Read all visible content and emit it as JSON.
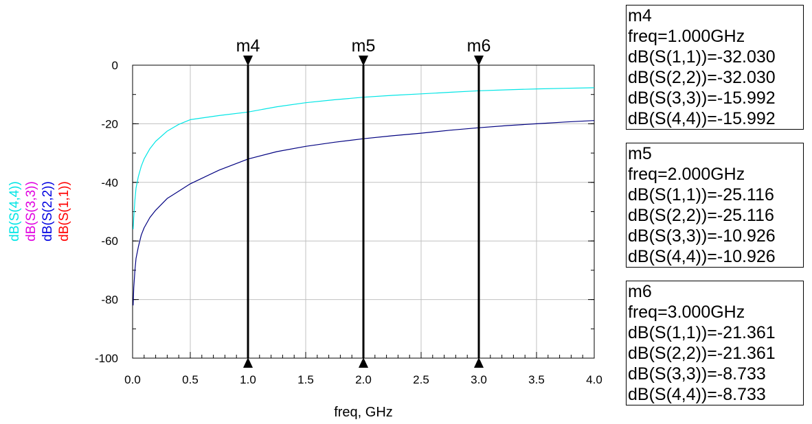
{
  "chart_data": {
    "type": "line",
    "xlabel": "freq, GHz",
    "xlim": [
      0.0,
      4.0
    ],
    "ylim": [
      -100,
      0
    ],
    "x_ticks": [
      "0.0",
      "0.5",
      "1.0",
      "1.5",
      "2.0",
      "2.5",
      "3.0",
      "3.5",
      "4.0"
    ],
    "y_ticks": [
      "0",
      "-20",
      "-40",
      "-60",
      "-80",
      "-100"
    ],
    "grid": true,
    "ylabels": [
      {
        "text": "dB(S(4,4))",
        "color": "#00e5e5"
      },
      {
        "text": "dB(S(3,3))",
        "color": "#e000e0"
      },
      {
        "text": "dB(S(2,2))",
        "color": "#0000e0"
      },
      {
        "text": "dB(S(1,1))",
        "color": "#ff0000"
      }
    ],
    "series": [
      {
        "name": "dB(S(4,4))",
        "color": "#00e5e5",
        "x": [
          0.005,
          0.01,
          0.02,
          0.03,
          0.05,
          0.075,
          0.1,
          0.15,
          0.2,
          0.3,
          0.4,
          0.5,
          0.75,
          1.0,
          1.25,
          1.5,
          1.75,
          2.0,
          2.25,
          2.5,
          2.75,
          3.0,
          3.25,
          3.5,
          3.75,
          4.0
        ],
        "y": [
          -56,
          -52,
          -46,
          -42,
          -38,
          -34.5,
          -32,
          -28.5,
          -26,
          -22.5,
          -20.2,
          -18.6,
          -17.2,
          -15.992,
          -14.2,
          -12.8,
          -11.8,
          -10.926,
          -10.3,
          -9.8,
          -9.25,
          -8.733,
          -8.4,
          -8.1,
          -7.9,
          -7.7
        ]
      },
      {
        "name": "dB(S(2,2))",
        "color": "#000080",
        "x": [
          0.005,
          0.01,
          0.02,
          0.03,
          0.05,
          0.075,
          0.1,
          0.15,
          0.2,
          0.3,
          0.4,
          0.5,
          0.75,
          1.0,
          1.25,
          1.5,
          1.75,
          2.0,
          2.25,
          2.5,
          2.75,
          3.0,
          3.25,
          3.5,
          3.75,
          4.0
        ],
        "y": [
          -82,
          -76,
          -70,
          -66,
          -62,
          -58,
          -55.5,
          -52,
          -49.5,
          -45.5,
          -43,
          -40.5,
          -35.8,
          -32.03,
          -29.5,
          -27.7,
          -26.3,
          -25.116,
          -24.1,
          -23.2,
          -22.2,
          -21.361,
          -20.6,
          -20.0,
          -19.4,
          -18.9
        ]
      }
    ],
    "markers": [
      {
        "name": "m4",
        "x": 1.0
      },
      {
        "name": "m5",
        "x": 2.0
      },
      {
        "name": "m6",
        "x": 3.0
      }
    ]
  },
  "marker_readouts": [
    {
      "name": "m4",
      "freq": "freq=1.000GHz",
      "lines": [
        "dB(S(1,1))=-32.030",
        "dB(S(2,2))=-32.030",
        "dB(S(3,3))=-15.992",
        "dB(S(4,4))=-15.992"
      ]
    },
    {
      "name": "m5",
      "freq": "freq=2.000GHz",
      "lines": [
        "dB(S(1,1))=-25.116",
        "dB(S(2,2))=-25.116",
        "dB(S(3,3))=-10.926",
        "dB(S(4,4))=-10.926"
      ]
    },
    {
      "name": "m6",
      "freq": "freq=3.000GHz",
      "lines": [
        "dB(S(1,1))=-21.361",
        "dB(S(2,2))=-21.361",
        "dB(S(3,3))=-8.733",
        "dB(S(4,4))=-8.733"
      ]
    }
  ]
}
